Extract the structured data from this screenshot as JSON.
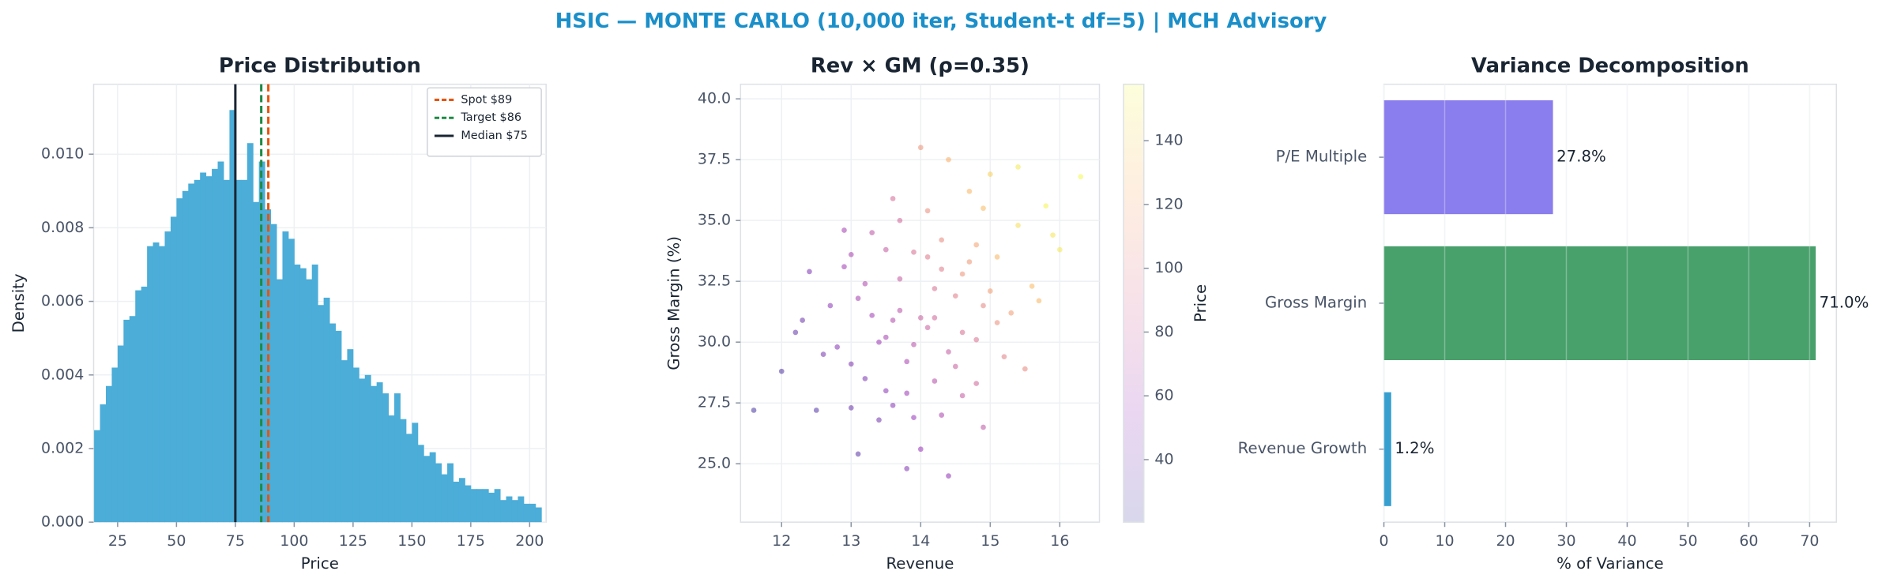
{
  "title": "HSIC — MONTE CARLO (10,000 iter, Student-t df=5) | MCH Advisory",
  "chart_data": [
    {
      "type": "histogram",
      "title": "Price Distribution",
      "xlabel": "Price",
      "ylabel": "Density",
      "color": "#4badd8",
      "bins": [
        15,
        17.5,
        20,
        22.5,
        25,
        27.5,
        30,
        32.5,
        35,
        37.5,
        40,
        42.5,
        45,
        47.5,
        50,
        52.5,
        55,
        57.5,
        60,
        62.5,
        65,
        67.5,
        70,
        72.5,
        75,
        77.5,
        80,
        82.5,
        85,
        87.5,
        90,
        92.5,
        95,
        97.5,
        100,
        102.5,
        105,
        107.5,
        110,
        112.5,
        115,
        117.5,
        120,
        122.5,
        125,
        127.5,
        130,
        132.5,
        135,
        137.5,
        140,
        142.5,
        145,
        147.5,
        150,
        152.5,
        155,
        157.5,
        160,
        162.5,
        165,
        167.5,
        170,
        172.5,
        175,
        177.5,
        180,
        182.5,
        185,
        187.5,
        190,
        192.5,
        195,
        197.5,
        200,
        202.5,
        205
      ],
      "values": [
        0.0025,
        0.0032,
        0.0037,
        0.0042,
        0.0048,
        0.0055,
        0.0056,
        0.0063,
        0.0064,
        0.0075,
        0.0076,
        0.0075,
        0.0079,
        0.0083,
        0.0088,
        0.009,
        0.0092,
        0.0093,
        0.0095,
        0.0094,
        0.0096,
        0.0098,
        0.0093,
        0.0112,
        0.0093,
        0.0093,
        0.0103,
        0.0087,
        0.0098,
        0.0085,
        0.0081,
        0.0066,
        0.0079,
        0.0077,
        0.007,
        0.0069,
        0.0066,
        0.007,
        0.0059,
        0.0061,
        0.0054,
        0.0052,
        0.0044,
        0.0047,
        0.0042,
        0.0039,
        0.004,
        0.0037,
        0.0038,
        0.0035,
        0.0029,
        0.0035,
        0.0028,
        0.0024,
        0.0027,
        0.0021,
        0.0018,
        0.0019,
        0.0016,
        0.0013,
        0.0016,
        0.0011,
        0.0012,
        0.001,
        0.0009,
        0.0009,
        0.0009,
        0.0008,
        0.0009,
        0.0006,
        0.0007,
        0.0006,
        0.0007,
        0.0005,
        0.0005,
        0.0004
      ],
      "vlines": [
        {
          "value": 89,
          "label": "Spot $89",
          "color": "#e8540e",
          "style": "dashed"
        },
        {
          "value": 86,
          "label": "Target $86",
          "color": "#1e8a44",
          "style": "dashed"
        },
        {
          "value": 75,
          "label": "Median $75",
          "color": "#1a2533",
          "style": "solid"
        }
      ],
      "legend": "upper right",
      "xlim": [
        14.8,
        207
      ],
      "xticks": [
        25,
        50,
        75,
        100,
        125,
        150,
        175,
        200
      ],
      "ylim": [
        0,
        0.0119
      ],
      "yticks": [
        {
          "value": 0,
          "label": "0.000"
        },
        0.002,
        0.004,
        0.006,
        0.008,
        {
          "value": 0.01,
          "label": "0.010"
        }
      ],
      "grid": true
    },
    {
      "type": "scatter",
      "title": "Rev × GM (ρ=0.35)",
      "xlabel": "Revenue",
      "ylabel": "Gross Margin (%)",
      "colormap": "plasma",
      "clabel": "Price",
      "x": [
        14.0,
        13.5,
        14.6,
        13.2,
        15.1,
        12.8,
        14.3,
        13.8,
        14.9,
        13.1,
        14.4,
        15.4,
        12.5,
        13.7,
        14.1,
        13.4,
        14.8,
        15.6,
        12.9,
        14.2,
        13.6,
        14.7,
        13.0,
        15.2,
        13.9,
        14.5,
        12.2,
        15.8,
        13.3,
        14.0,
        14.6,
        13.5,
        15.0,
        12.7,
        14.3,
        13.8,
        16.0,
        13.2,
        14.9,
        12.0,
        14.1,
        13.6,
        15.3,
        14.4,
        13.0,
        14.8,
        12.4,
        15.5,
        13.7,
        14.2,
        11.6,
        16.3,
        13.4,
        14.5,
        12.9,
        15.1,
        13.9,
        14.7,
        13.1,
        14.0,
        14.4,
        15.7,
        12.6,
        13.5,
        14.9,
        13.8,
        14.2,
        13.3,
        15.0,
        13.9,
        14.6,
        12.3,
        15.9,
        13.6,
        14.1,
        14.3,
        14.8,
        13.0,
        15.4,
        13.7
      ],
      "y": [
        31.0,
        30.2,
        32.8,
        28.5,
        33.5,
        29.8,
        34.2,
        27.9,
        31.5,
        31.8,
        29.6,
        34.8,
        27.2,
        32.6,
        35.4,
        26.8,
        30.1,
        32.3,
        33.1,
        28.4,
        30.9,
        36.2,
        29.1,
        29.4,
        33.7,
        31.9,
        30.4,
        35.6,
        34.5,
        25.6,
        27.8,
        28.0,
        36.9,
        31.5,
        33.0,
        29.2,
        33.8,
        32.4,
        26.5,
        28.8,
        30.6,
        35.9,
        31.2,
        37.5,
        27.3,
        34.0,
        32.9,
        28.9,
        31.3,
        32.2,
        27.2,
        36.8,
        30.0,
        29.0,
        34.6,
        30.8,
        26.9,
        33.3,
        25.4,
        38.0,
        24.5,
        31.7,
        29.5,
        33.8,
        35.5,
        24.8,
        31.0,
        31.1,
        32.1,
        29.9,
        30.4,
        30.9,
        34.4,
        27.4,
        33.5,
        27.0,
        28.3,
        33.6,
        37.2,
        35.0
      ],
      "color_values": [
        80,
        62,
        110,
        45,
        128,
        48,
        105,
        58,
        103,
        62,
        78,
        145,
        30,
        78,
        108,
        40,
        92,
        130,
        60,
        70,
        68,
        128,
        46,
        100,
        90,
        98,
        35,
        155,
        74,
        55,
        78,
        50,
        140,
        50,
        98,
        64,
        150,
        66,
        75,
        28,
        80,
        88,
        115,
        125,
        38,
        118,
        45,
        105,
        72,
        90,
        25,
        158,
        58,
        80,
        62,
        108,
        55,
        112,
        32,
        110,
        52,
        128,
        42,
        78,
        130,
        46,
        85,
        60,
        115,
        70,
        90,
        38,
        148,
        48,
        96,
        65,
        85,
        64,
        150,
        85
      ],
      "xlim": [
        11.41,
        16.57
      ],
      "xticks": [
        12,
        13,
        14,
        15,
        16
      ],
      "ylim": [
        22.6,
        40.6
      ],
      "yticks": [
        {
          "value": 25,
          "label": "25.0"
        },
        27.5,
        {
          "value": 30,
          "label": "30.0"
        },
        32.5,
        {
          "value": 35,
          "label": "35.0"
        },
        37.5,
        {
          "value": 40,
          "label": "40.0"
        }
      ],
      "clim": [
        20.4,
        157.7
      ],
      "cticks": [
        40,
        60,
        80,
        100,
        120,
        140
      ],
      "grid": true
    },
    {
      "type": "bar",
      "orientation": "horizontal",
      "title": "Variance Decomposition",
      "xlabel": "% of Variance",
      "categories": [
        "Revenue Growth",
        "Gross Margin",
        "P/E Multiple"
      ],
      "values": [
        1.2,
        71.0,
        27.8
      ],
      "value_labels": [
        "1.2%",
        "71.0%",
        "27.8%"
      ],
      "colors": [
        "#379fd0",
        "#48a06b",
        "#8a7ded"
      ],
      "xlim": [
        0,
        74.4
      ],
      "xticks": [
        0,
        10,
        20,
        30,
        40,
        50,
        60,
        70
      ],
      "grid": true
    }
  ]
}
